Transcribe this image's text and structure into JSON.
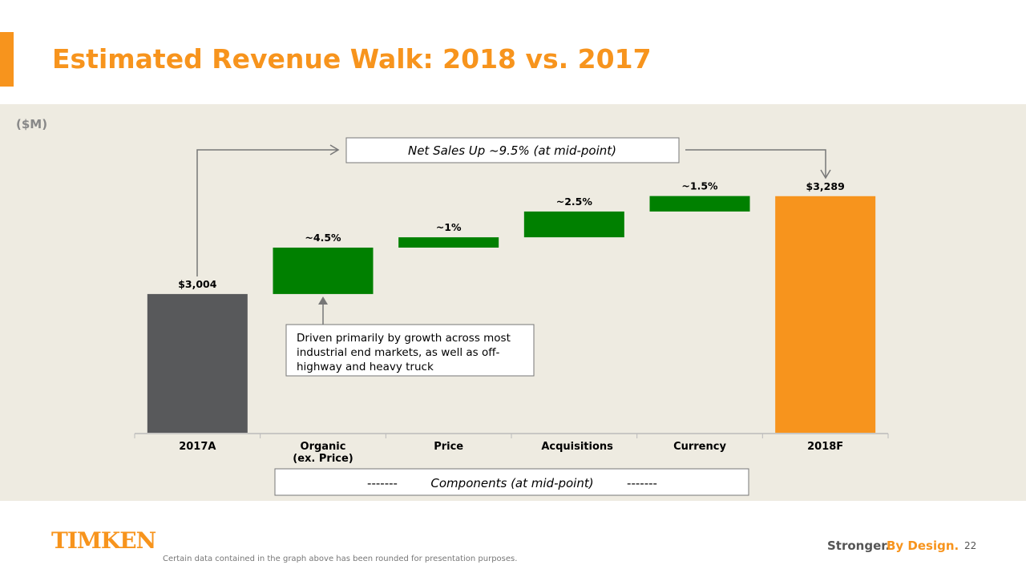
{
  "header": {
    "title": "Estimated Revenue Walk: 2018 vs. 2017"
  },
  "chart_data": {
    "type": "waterfall",
    "unit_label": "($M)",
    "categories": [
      "2017A",
      "Organic (ex. Price)",
      "Price",
      "Acquisitions",
      "Currency",
      "2018F"
    ],
    "values": [
      3004,
      4.5,
      1,
      2.5,
      1.5,
      3289
    ],
    "value_labels": [
      "$3,004",
      "~4.5%",
      "~1%",
      "~2.5%",
      "~1.5%",
      "$3,289"
    ],
    "colors": [
      "#58595b",
      "#008000",
      "#008000",
      "#008000",
      "#008000",
      "#f7941d"
    ],
    "ylim": [
      2600,
      3320
    ],
    "annotations": {
      "net_sales": "Net Sales Up ~9.5% (at mid-point)",
      "organic_note": "Driven primarily by growth across most industrial end markets, as well as off-highway and heavy truck",
      "components": [
        "-------",
        "Components (at mid-point)",
        "-------"
      ]
    }
  },
  "footer": {
    "logo": "TIMKEN",
    "tagline": [
      "Stronger.",
      "By Design."
    ],
    "page": "22",
    "note": "Certain data contained in the graph above has been rounded for presentation purposes."
  }
}
